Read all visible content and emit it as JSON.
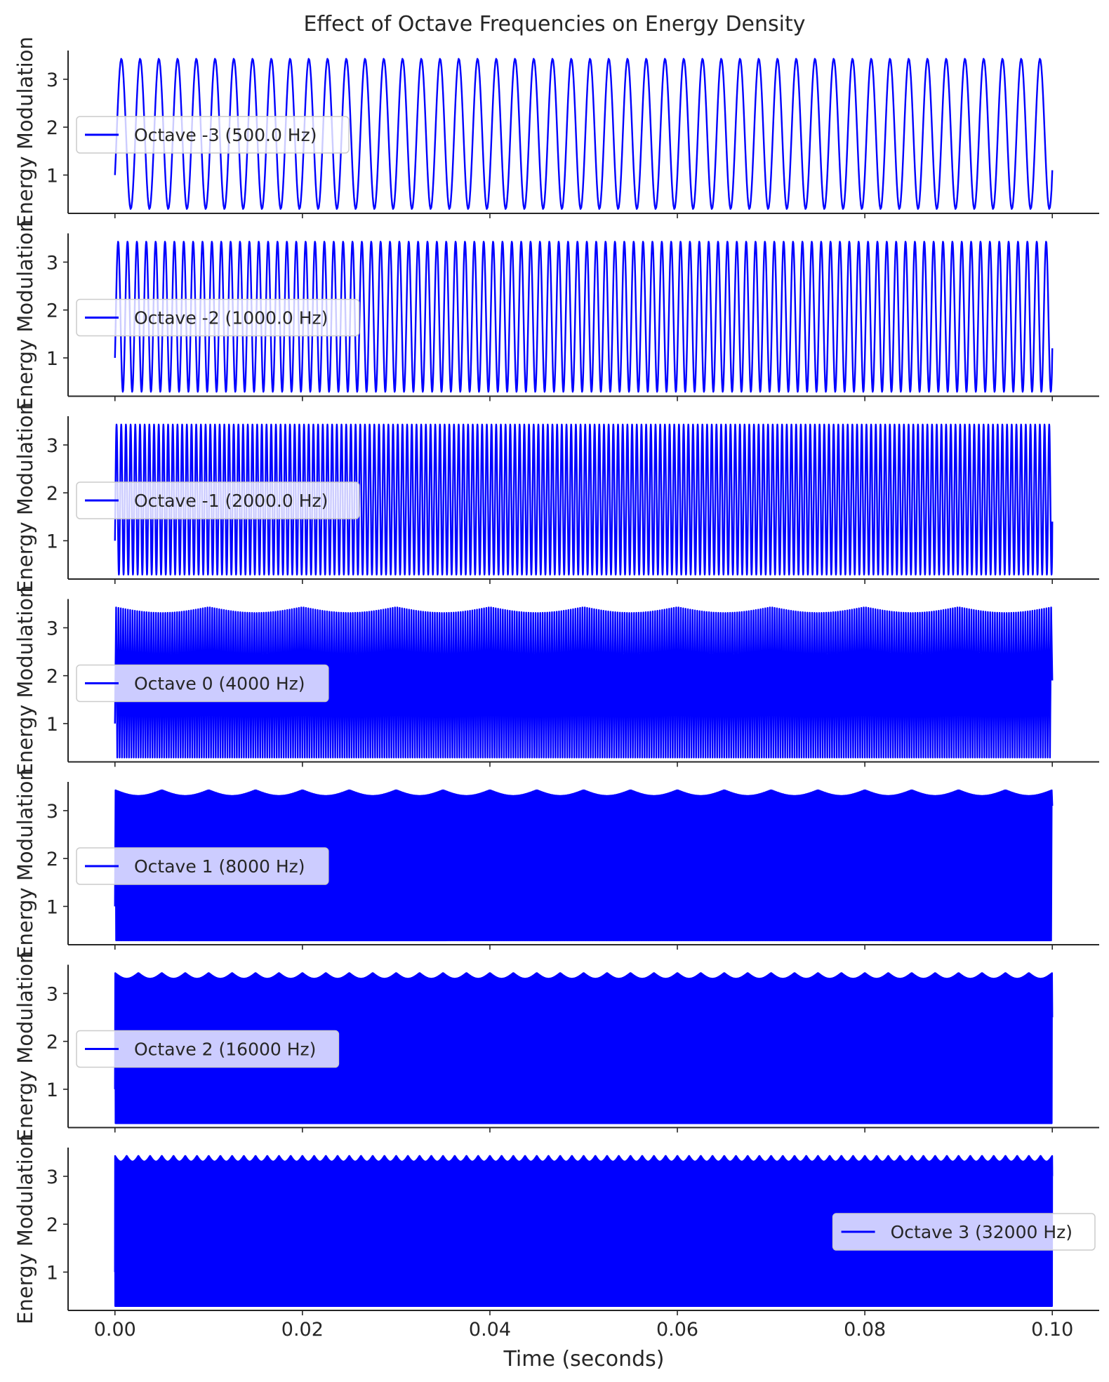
{
  "figure": {
    "title": "Effect of Octave Frequencies on Energy Density",
    "xlabel": "Time (seconds)",
    "line_color": "#0000ff"
  },
  "chart_data": [
    {
      "type": "line",
      "name": "Octave -3 (500.0 Hz)",
      "frequency_hz": 500,
      "legend_loc": "center-left",
      "ylabel": "Energy Modulation",
      "xlim": [
        -0.005,
        0.105
      ],
      "ylim": [
        0.2,
        3.6
      ],
      "xticks": [
        0.0,
        0.02,
        0.04,
        0.06,
        0.08,
        0.1
      ],
      "yticks": [
        1,
        2,
        3
      ],
      "min": 0.29,
      "max": 3.43,
      "start_value": 1.0,
      "end_value": 1.1
    },
    {
      "type": "line",
      "name": "Octave -2 (1000.0 Hz)",
      "frequency_hz": 1000,
      "legend_loc": "center-left",
      "ylabel": "Energy Modulation",
      "xlim": [
        -0.005,
        0.105
      ],
      "ylim": [
        0.2,
        3.6
      ],
      "xticks": [
        0.0,
        0.02,
        0.04,
        0.06,
        0.08,
        0.1
      ],
      "yticks": [
        1,
        2,
        3
      ],
      "min": 0.29,
      "max": 3.43,
      "start_value": 1.0,
      "end_value": 1.2
    },
    {
      "type": "line",
      "name": "Octave -1 (2000.0 Hz)",
      "frequency_hz": 2000,
      "legend_loc": "center-left",
      "ylabel": "Energy Modulation",
      "xlim": [
        -0.005,
        0.105
      ],
      "ylim": [
        0.2,
        3.6
      ],
      "xticks": [
        0.0,
        0.02,
        0.04,
        0.06,
        0.08,
        0.1
      ],
      "yticks": [
        1,
        2,
        3
      ],
      "min": 0.29,
      "max": 3.43,
      "start_value": 1.0,
      "end_value": 1.4
    },
    {
      "type": "line",
      "name": "Octave 0 (4000 Hz)",
      "frequency_hz": 4000,
      "legend_loc": "center-left",
      "ylabel": "Energy Modulation",
      "xlim": [
        -0.005,
        0.105
      ],
      "ylim": [
        0.2,
        3.6
      ],
      "xticks": [
        0.0,
        0.02,
        0.04,
        0.06,
        0.08,
        0.1
      ],
      "yticks": [
        1,
        2,
        3
      ],
      "min": 0.29,
      "max": 3.43,
      "start_value": 1.0,
      "end_value": 1.9
    },
    {
      "type": "line",
      "name": "Octave 1 (8000 Hz)",
      "frequency_hz": 8000,
      "legend_loc": "center-left",
      "ylabel": "Energy Modulation",
      "xlim": [
        -0.005,
        0.105
      ],
      "ylim": [
        0.2,
        3.6
      ],
      "xticks": [
        0.0,
        0.02,
        0.04,
        0.06,
        0.08,
        0.1
      ],
      "yticks": [
        1,
        2,
        3
      ],
      "min": 0.29,
      "max": 3.43,
      "start_value": 1.0,
      "end_value": 3.1
    },
    {
      "type": "line",
      "name": "Octave 2 (16000 Hz)",
      "frequency_hz": 16000,
      "legend_loc": "center-left",
      "ylabel": "Energy Modulation",
      "xlim": [
        -0.005,
        0.105
      ],
      "ylim": [
        0.2,
        3.6
      ],
      "xticks": [
        0.0,
        0.02,
        0.04,
        0.06,
        0.08,
        0.1
      ],
      "yticks": [
        1,
        2,
        3
      ],
      "min": 0.29,
      "max": 3.43,
      "start_value": 1.0,
      "end_value": 2.5
    },
    {
      "type": "line",
      "name": "Octave 3 (32000 Hz)",
      "frequency_hz": 32000,
      "legend_loc": "center-right",
      "ylabel": "Energy Modulation",
      "xlim": [
        -0.005,
        0.105
      ],
      "ylim": [
        0.2,
        3.6
      ],
      "xticks": [
        0.0,
        0.02,
        0.04,
        0.06,
        0.08,
        0.1
      ],
      "yticks": [
        1,
        2,
        3
      ],
      "min": 0.29,
      "max": 3.43,
      "start_value": 1.0,
      "end_value": 3.0
    }
  ]
}
